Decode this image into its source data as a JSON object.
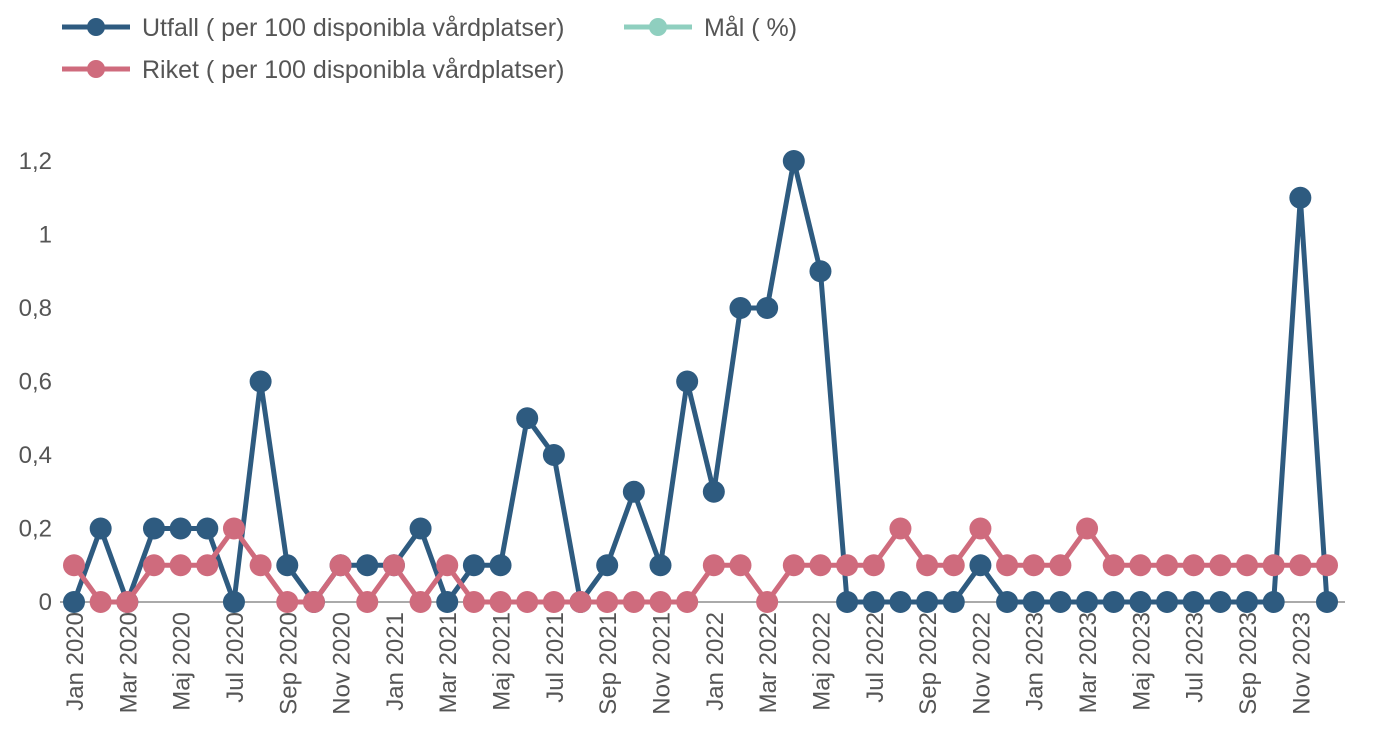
{
  "chart_data": {
    "type": "line",
    "categories": [
      "Jan 2020",
      null,
      "Mar 2020",
      null,
      "Maj 2020",
      null,
      "Jul 2020",
      null,
      "Sep 2020",
      null,
      "Nov 2020",
      null,
      "Jan 2021",
      null,
      "Mar 2021",
      null,
      "Maj 2021",
      null,
      "Jul 2021",
      null,
      "Sep 2021",
      null,
      "Nov 2021",
      null,
      "Jan 2022",
      null,
      "Mar 2022",
      null,
      "Maj 2022",
      null,
      "Jul 2022",
      null,
      "Sep 2022",
      null,
      "Nov 2022",
      null,
      "Jan 2023",
      null,
      "Mar 2023",
      null,
      "Maj 2023",
      null,
      "Jul 2023",
      null,
      "Sep 2023",
      null,
      "Nov 2023",
      null
    ],
    "series": [
      {
        "name": "Utfall ( per 100 disponibla vårdplatser)",
        "color": "#2e5b80",
        "values": [
          0,
          0.2,
          0,
          0.2,
          0.2,
          0.2,
          0,
          0.6,
          0.1,
          0,
          0.1,
          0.1,
          0.1,
          0.2,
          0,
          0.1,
          0.1,
          0.5,
          0.4,
          0,
          0.1,
          0.3,
          0.1,
          0.6,
          0.3,
          0.8,
          0.8,
          1.2,
          0.9,
          0,
          0,
          0,
          0,
          0,
          0.1,
          0,
          0,
          0,
          0,
          0,
          0,
          0,
          0,
          0,
          0,
          0,
          1.1,
          0
        ]
      },
      {
        "name": "Mål ( %)",
        "color": "#8fcfbf",
        "values": [
          null,
          null,
          null,
          null,
          null,
          null,
          null,
          null,
          null,
          null,
          null,
          null,
          null,
          null,
          null,
          null,
          null,
          null,
          null,
          null,
          null,
          null,
          null,
          null,
          null,
          null,
          null,
          null,
          null,
          null,
          null,
          null,
          null,
          null,
          null,
          null,
          null,
          null,
          null,
          null,
          null,
          null,
          null,
          null,
          null,
          null,
          null,
          null
        ]
      },
      {
        "name": "Riket ( per 100 disponibla vårdplatser)",
        "color": "#cf6b7d",
        "values": [
          0.1,
          0,
          0,
          0.1,
          0.1,
          0.1,
          0.2,
          0.1,
          0,
          0,
          0.1,
          0,
          0.1,
          0,
          0.1,
          0,
          0,
          0,
          0,
          0,
          0,
          0,
          0,
          0,
          0.1,
          0.1,
          0,
          0.1,
          0.1,
          0.1,
          0.1,
          0.2,
          0.1,
          0.1,
          0.2,
          0.1,
          0.1,
          0.1,
          0.2,
          0.1,
          0.1,
          0.1,
          0.1,
          0.1,
          0.1,
          0.1,
          0.1,
          0.1
        ]
      }
    ],
    "ylim": [
      0,
      1.2
    ],
    "yticks": [
      0,
      {
        "value": 0.2,
        "label": "0,2"
      },
      {
        "value": 0.4,
        "label": "0,4"
      },
      {
        "value": 0.6,
        "label": "0,6"
      },
      {
        "value": 0.8,
        "label": "0,8"
      },
      1,
      {
        "value": 1.2,
        "label": "1,2"
      }
    ]
  }
}
